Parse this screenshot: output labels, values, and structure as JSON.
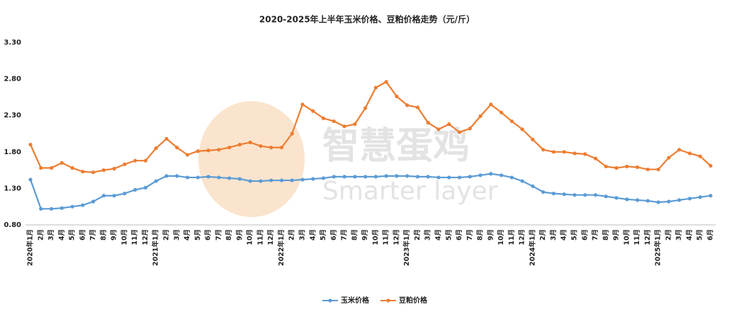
{
  "chart_data": {
    "type": "line",
    "title": "2020-2025年上半年玉米价格、豆粕价格走势（元/斤）",
    "watermark": [
      "智慧蛋鸡",
      "Smarter layer"
    ],
    "categories": [
      "2020年1月",
      "2月",
      "3月",
      "4月",
      "5月",
      "6月",
      "7月",
      "8月",
      "9月",
      "10月",
      "11月",
      "12月",
      "2021年1月",
      "2月",
      "3月",
      "4月",
      "5月",
      "6月",
      "7月",
      "8月",
      "9月",
      "10月",
      "11月",
      "12月",
      "2022年1月",
      "2月",
      "3月",
      "4月",
      "5月",
      "6月",
      "7月",
      "8月",
      "9月",
      "10月",
      "11月",
      "12月",
      "2023年1月",
      "2月",
      "3月",
      "4月",
      "5月",
      "6月",
      "7月",
      "8月",
      "9月",
      "10月",
      "11月",
      "12月",
      "2024年1月",
      "2月",
      "3月",
      "4月",
      "5月",
      "6月",
      "7月",
      "8月",
      "9月",
      "10月",
      "11月",
      "12月",
      "2025年1月",
      "2月",
      "3月",
      "4月",
      "5月",
      "6月"
    ],
    "series": [
      {
        "name": "玉米价格",
        "color": "#5b9bd5",
        "values": [
          1.42,
          1.02,
          1.02,
          1.03,
          1.05,
          1.07,
          1.12,
          1.2,
          1.2,
          1.23,
          1.28,
          1.31,
          1.4,
          1.47,
          1.47,
          1.45,
          1.45,
          1.46,
          1.45,
          1.44,
          1.43,
          1.4,
          1.4,
          1.41,
          1.41,
          1.41,
          1.42,
          1.43,
          1.44,
          1.46,
          1.46,
          1.46,
          1.46,
          1.46,
          1.47,
          1.47,
          1.47,
          1.46,
          1.46,
          1.45,
          1.45,
          1.45,
          1.46,
          1.48,
          1.5,
          1.48,
          1.45,
          1.4,
          1.33,
          1.25,
          1.23,
          1.22,
          1.21,
          1.21,
          1.21,
          1.19,
          1.17,
          1.15,
          1.14,
          1.13,
          1.11,
          1.12,
          1.14,
          1.16,
          1.18,
          1.2
        ]
      },
      {
        "name": "豆粕价格",
        "color": "#ed7d31",
        "values": [
          1.9,
          1.58,
          1.58,
          1.65,
          1.58,
          1.53,
          1.52,
          1.55,
          1.57,
          1.63,
          1.68,
          1.68,
          1.85,
          1.98,
          1.86,
          1.76,
          1.81,
          1.82,
          1.83,
          1.86,
          1.9,
          1.93,
          1.88,
          1.86,
          1.86,
          2.05,
          2.45,
          2.36,
          2.26,
          2.22,
          2.15,
          2.18,
          2.4,
          2.68,
          2.76,
          2.56,
          2.44,
          2.41,
          2.2,
          2.11,
          2.18,
          2.07,
          2.12,
          2.29,
          2.45,
          2.34,
          2.22,
          2.11,
          1.97,
          1.83,
          1.8,
          1.8,
          1.78,
          1.77,
          1.71,
          1.6,
          1.58,
          1.6,
          1.59,
          1.56,
          1.56,
          1.72,
          1.83,
          1.78,
          1.74,
          1.61
        ]
      }
    ],
    "ylim": [
      0.8,
      3.3
    ],
    "yticks": [
      {
        "value": 0.8,
        "label": "0.80"
      },
      {
        "value": 1.3,
        "label": "1.30"
      },
      {
        "value": 1.8,
        "label": "1.80"
      },
      {
        "value": 2.3,
        "label": "2.30"
      },
      {
        "value": 2.8,
        "label": "2.80"
      },
      {
        "value": 3.3,
        "label": "3.30"
      }
    ],
    "grid": false,
    "legend": "bottom"
  }
}
